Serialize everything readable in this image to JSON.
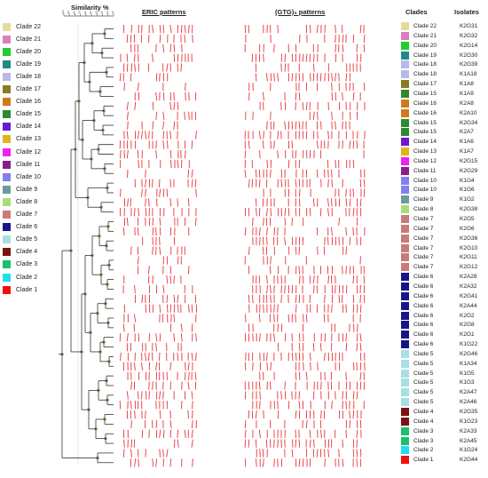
{
  "headers": {
    "similarity": "Similarity %",
    "eric": "ERIC patterns",
    "gtg": "(GTG)₅ patterns",
    "clades": "Clades",
    "isolates": "Isolates"
  },
  "scale_ticks": [
    "100",
    "90",
    "80",
    "70",
    "60",
    "50",
    "40",
    "30",
    "20",
    "10"
  ],
  "legend": [
    {
      "label": "Clade 22",
      "color": "#e6dc9a"
    },
    {
      "label": "Clade 21",
      "color": "#d97fbf"
    },
    {
      "label": "Clade 20",
      "color": "#22cc33"
    },
    {
      "label": "Clade 19",
      "color": "#1f8a8a"
    },
    {
      "label": "Clade 18",
      "color": "#b8b8f0"
    },
    {
      "label": "Clade 17",
      "color": "#8a7a22"
    },
    {
      "label": "Clade 16",
      "color": "#d07a1e"
    },
    {
      "label": "Clade 15",
      "color": "#2f8a2f"
    },
    {
      "label": "Clade 14",
      "color": "#6a1bd0"
    },
    {
      "label": "Clade 13",
      "color": "#e0b41a"
    },
    {
      "label": "Clade 12",
      "color": "#ee22ee"
    },
    {
      "label": "Clade 11",
      "color": "#8a1e8a"
    },
    {
      "label": "Clade 10",
      "color": "#8080ee"
    },
    {
      "label": "Clade 9",
      "color": "#6f9a9a"
    },
    {
      "label": "Clade 8",
      "color": "#a8dc7a"
    },
    {
      "label": "Clade 7",
      "color": "#c97a7a"
    },
    {
      "label": "Clade 6",
      "color": "#16168a"
    },
    {
      "label": "Clade 5",
      "color": "#a6e0e4"
    },
    {
      "label": "Clade 4",
      "color": "#7a1212"
    },
    {
      "label": "Clade 3",
      "color": "#1cbf6a"
    },
    {
      "label": "Clade 2",
      "color": "#22ddee"
    },
    {
      "label": "Clade 1",
      "color": "#ee1111"
    }
  ],
  "isolates": [
    {
      "clade": "Clade 22",
      "isolate": "K2G31"
    },
    {
      "clade": "Clade 21",
      "isolate": "K2G32"
    },
    {
      "clade": "Clade 20",
      "isolate": "K2G14"
    },
    {
      "clade": "Clade 19",
      "isolate": "K2G30"
    },
    {
      "clade": "Clade 18",
      "isolate": "K2G39"
    },
    {
      "clade": "Clade 18",
      "isolate": "K1A18"
    },
    {
      "clade": "Clade 17",
      "isolate": "K1A8"
    },
    {
      "clade": "Clade 15",
      "isolate": "K1A9"
    },
    {
      "clade": "Clade 16",
      "isolate": "K2A8"
    },
    {
      "clade": "Clade 16",
      "isolate": "K2A10"
    },
    {
      "clade": "Clade 15",
      "isolate": "K2G34"
    },
    {
      "clade": "Clade 15",
      "isolate": "K2A7"
    },
    {
      "clade": "Clade 14",
      "isolate": "K1A6"
    },
    {
      "clade": "Clade 13",
      "isolate": "K1A7"
    },
    {
      "clade": "Clade 12",
      "isolate": "K2G15"
    },
    {
      "clade": "Clade 11",
      "isolate": "K2G29"
    },
    {
      "clade": "Clade 10",
      "isolate": "K1G4"
    },
    {
      "clade": "Clade 10",
      "isolate": "K1G6"
    },
    {
      "clade": "Clade 9",
      "isolate": "K1G2"
    },
    {
      "clade": "Clade 8",
      "isolate": "K2G38"
    },
    {
      "clade": "Clade 7",
      "isolate": "K2G5"
    },
    {
      "clade": "Clade 7",
      "isolate": "K2G6"
    },
    {
      "clade": "Clade 7",
      "isolate": "K2G36"
    },
    {
      "clade": "Clade 7",
      "isolate": "K2G10"
    },
    {
      "clade": "Clade 7",
      "isolate": "K2G11"
    },
    {
      "clade": "Clade 7",
      "isolate": "K2G12"
    },
    {
      "clade": "Clade 6",
      "isolate": "K2A28"
    },
    {
      "clade": "Clade 6",
      "isolate": "K2A32"
    },
    {
      "clade": "Clade 6",
      "isolate": "K2G41"
    },
    {
      "clade": "Clade 6",
      "isolate": "K2A44"
    },
    {
      "clade": "Clade 6",
      "isolate": "K2G2"
    },
    {
      "clade": "Clade 6",
      "isolate": "K2G8"
    },
    {
      "clade": "Clade 6",
      "isolate": "K2G1"
    },
    {
      "clade": "Clade 6",
      "isolate": "K1G22"
    },
    {
      "clade": "Clade 5",
      "isolate": "K2G46"
    },
    {
      "clade": "Clade 5",
      "isolate": "K1A34"
    },
    {
      "clade": "Clade 5",
      "isolate": "K1G5"
    },
    {
      "clade": "Clade 5",
      "isolate": "K1G3"
    },
    {
      "clade": "Clade 5",
      "isolate": "K2A47"
    },
    {
      "clade": "Clade 5",
      "isolate": "K2A46"
    },
    {
      "clade": "Clade 4",
      "isolate": "K2G35"
    },
    {
      "clade": "Clade 4",
      "isolate": "K1G23"
    },
    {
      "clade": "Clade 3",
      "isolate": "K2A33"
    },
    {
      "clade": "Clade 3",
      "isolate": "K2A45"
    },
    {
      "clade": "Clade 2",
      "isolate": "K1G24"
    },
    {
      "clade": "Clade 1",
      "isolate": "K2G44"
    }
  ],
  "colors": {
    "band": "#e8353a",
    "tree": "#333333",
    "node": "#6b6b2a",
    "scale_line": "#88aa88"
  }
}
